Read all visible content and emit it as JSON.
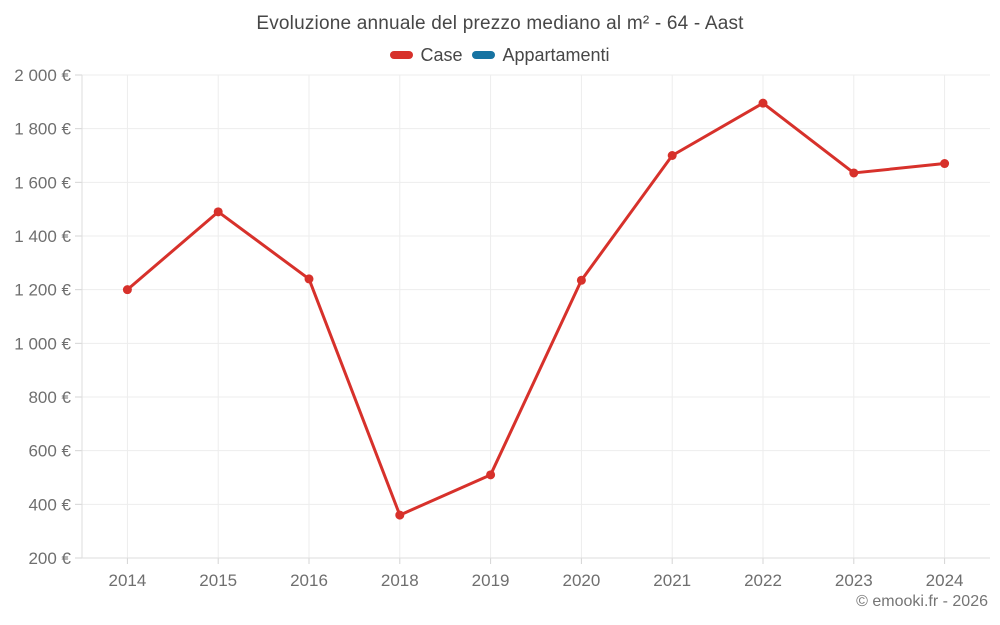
{
  "chart_data": {
    "type": "line",
    "title": "Evoluzione annuale del prezzo mediano al m² - 64 - Aast",
    "categories": [
      "2014",
      "2015",
      "2016",
      "2018",
      "2019",
      "2020",
      "2021",
      "2022",
      "2023",
      "2024"
    ],
    "series": [
      {
        "name": "Case",
        "color": "#d7312b",
        "values": [
          1200,
          1490,
          1240,
          360,
          510,
          1235,
          1700,
          1895,
          1635,
          1670
        ]
      },
      {
        "name": "Appartamenti",
        "color": "#1673a2",
        "values": [
          null,
          null,
          null,
          null,
          null,
          null,
          null,
          null,
          null,
          null
        ]
      }
    ],
    "ylim": [
      200,
      2000
    ],
    "y_tick_step": 200,
    "y_tick_labels": [
      "200 €",
      "400 €",
      "600 €",
      "800 €",
      "1 000 €",
      "1 200 €",
      "1 400 €",
      "1 600 €",
      "1 800 €",
      "2 000 €"
    ],
    "grid": true,
    "legend_position": "top",
    "currency": "€"
  },
  "footer": {
    "copyright": "© emooki.fr - 2026"
  }
}
